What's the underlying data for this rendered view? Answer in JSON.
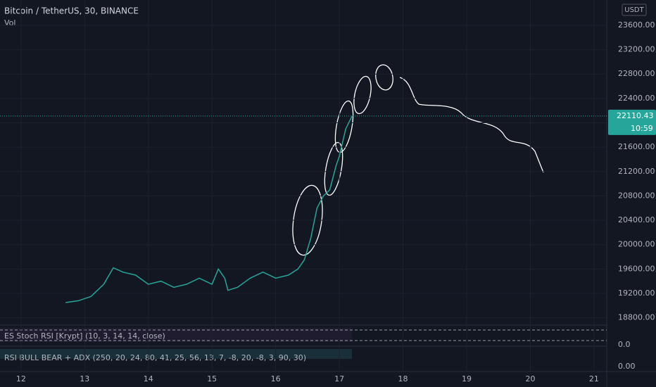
{
  "header": {
    "symbol": "Bitcoin / TetherUS, 30, BINANCE",
    "volume_label": "Vol",
    "currency": "USDT"
  },
  "chart_data": {
    "type": "line",
    "x": [
      12.7,
      12.9,
      13.1,
      13.3,
      13.45,
      13.6,
      13.8,
      14.0,
      14.2,
      14.4,
      14.6,
      14.8,
      15.0,
      15.1,
      15.2,
      15.25,
      15.4,
      15.6,
      15.8,
      16.0,
      16.2,
      16.35,
      16.45,
      16.55,
      16.65,
      16.75,
      16.85,
      16.95,
      17.0,
      17.1,
      17.2
    ],
    "values": [
      19050,
      19080,
      19150,
      19350,
      19620,
      19550,
      19500,
      19350,
      19400,
      19300,
      19350,
      19450,
      19350,
      19600,
      19450,
      19250,
      19300,
      19450,
      19550,
      19450,
      19500,
      19600,
      19750,
      20100,
      20600,
      20800,
      20900,
      21300,
      21450,
      21900,
      22110.43
    ],
    "color": "#26a69a",
    "last_price": 22110.43,
    "countdown": "10:59",
    "xlim": [
      11.67,
      21.2
    ],
    "xticks": [
      12,
      13,
      14,
      15,
      16,
      17,
      18,
      19,
      20,
      21
    ],
    "ylim": [
      18680,
      24015
    ],
    "yticks": [
      {
        "value": 18800,
        "label": "18800.00"
      },
      {
        "value": 19200,
        "label": "19200.00"
      },
      {
        "value": 19600,
        "label": "19600.00"
      },
      {
        "value": 20000,
        "label": "20000.00"
      },
      {
        "value": 20400,
        "label": "20400.00"
      },
      {
        "value": 20800,
        "label": "20800.00"
      },
      {
        "value": 21200,
        "label": "21200.00"
      },
      {
        "value": 21600,
        "label": "21600.00"
      },
      {
        "value": 22000,
        "label": "22000.00"
      },
      {
        "value": 22400,
        "label": "22400.00"
      },
      {
        "value": 22800,
        "label": "22800.00"
      },
      {
        "value": 23200,
        "label": "23200.00"
      },
      {
        "value": 23600,
        "label": "23600.00"
      }
    ]
  },
  "indicators": [
    {
      "label": "ES Stoch RSI [Krypt] (10, 3, 14, 14, close)",
      "tick": "0.0"
    },
    {
      "label": "RSI BULL BEAR + ADX (250, 20, 24, 80, 41, 25, 56, 13, 7, -8, 20, -8, 3, 90, 30)",
      "tick": "0.00"
    }
  ]
}
